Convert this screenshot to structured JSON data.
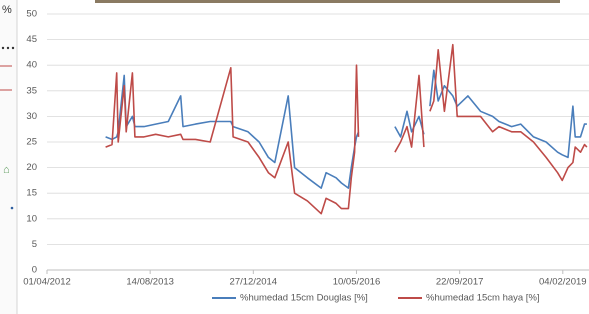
{
  "fragment": {
    "text": "%"
  },
  "chart_data": {
    "type": "line",
    "x": [
      "2013-01-10",
      "2013-02-10",
      "2013-03-05",
      "2013-03-12",
      "2013-04-10",
      "2013-04-20",
      "2013-05-20",
      "2013-06-01",
      "2013-07-15",
      "2013-09-10",
      "2013-11-10",
      "2014-01-09",
      "2014-01-20",
      "2014-03-22",
      "2014-06-01",
      "2014-09-09",
      "2014-09-20",
      "2014-12-01",
      "2015-01-24",
      "2015-03-10",
      "2015-04-10",
      "2015-06-14",
      "2015-07-15",
      "2015-09-15",
      "2015-11-21",
      "2015-12-15",
      "2016-02-01",
      "2016-02-27",
      "2016-04-01",
      "2016-04-15",
      "2016-05-01",
      "2016-05-10",
      "2016-05-20",
      "2016-08-15",
      "2016-11-12",
      "2016-12-10",
      "2017-01-10",
      "2017-02-01",
      "2017-03-09",
      "2017-04-02",
      "2017-04-15",
      "2017-05-01",
      "2017-05-20",
      "2017-06-10",
      "2017-07-10",
      "2017-08-20",
      "2017-09-10",
      "2017-11-01",
      "2018-01-01",
      "2018-03-01",
      "2018-04-01",
      "2018-06-01",
      "2018-07-15",
      "2018-09-15",
      "2018-11-15",
      "2019-01-10",
      "2019-02-01",
      "2019-03-01",
      "2019-03-25",
      "2019-04-05",
      "2019-05-01",
      "2019-05-20",
      "2019-06-01"
    ],
    "series": [
      {
        "name": "%humedad 15cm Douglas [%]",
        "color": "#4a7ebb",
        "values": [
          26,
          25.5,
          26,
          27,
          38,
          28,
          30,
          28,
          28,
          28.5,
          29,
          34,
          28,
          28.5,
          29,
          29,
          28,
          27,
          25,
          22,
          21,
          34,
          20,
          18,
          16,
          19,
          18,
          17,
          16,
          20,
          24,
          26,
          27,
          null,
          28,
          26,
          31,
          27,
          30,
          26.5,
          null,
          32,
          39,
          33,
          36,
          34,
          32,
          34,
          31,
          30,
          29,
          28,
          28.5,
          26,
          25,
          23,
          22.5,
          22,
          32,
          26,
          26,
          28.5,
          28.5
        ]
      },
      {
        "name": "%humedad 15cm haya [%]",
        "color": "#be4b48",
        "values": [
          24,
          24.5,
          38.5,
          25,
          36,
          27,
          38.5,
          26,
          26,
          26.5,
          26,
          26.5,
          25.5,
          25.5,
          25,
          39.5,
          26,
          25,
          22,
          19,
          18,
          25,
          15,
          13.5,
          11,
          14,
          13,
          12,
          12,
          18,
          23,
          40,
          26,
          null,
          23,
          25,
          28,
          24,
          38,
          24,
          null,
          31,
          33,
          43,
          31,
          44,
          30,
          30,
          30,
          27,
          28,
          27,
          27,
          25,
          22,
          19,
          17.5,
          20,
          21,
          24,
          23,
          24.5,
          24
        ]
      }
    ],
    "xlim": [
      "2012-04-01",
      "2019-06-11"
    ],
    "xticks": [
      {
        "value": "2012-04-01",
        "label": "01/04/2012"
      },
      {
        "value": "2013-08-14",
        "label": "14/08/2013"
      },
      {
        "value": "2014-12-27",
        "label": "27/12/2014"
      },
      {
        "value": "2016-05-10",
        "label": "10/05/2016"
      },
      {
        "value": "2017-09-22",
        "label": "22/09/2017"
      },
      {
        "value": "2019-02-04",
        "label": "04/02/2019"
      }
    ],
    "ylim": [
      0,
      50
    ],
    "yticks": [
      0,
      5,
      10,
      15,
      20,
      25,
      30,
      35,
      40,
      45,
      50
    ],
    "grid": true
  }
}
